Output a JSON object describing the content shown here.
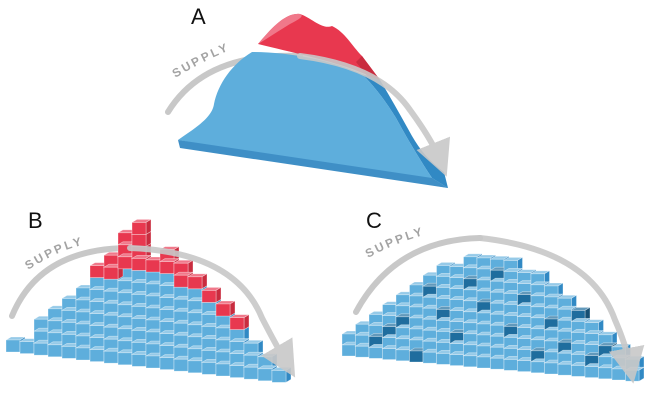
{
  "panels": [
    {
      "id": "a",
      "label": "A",
      "supply": "SUPPLY"
    },
    {
      "id": "b",
      "label": "B",
      "supply": "SUPPLY"
    },
    {
      "id": "c",
      "label": "C",
      "supply": "SUPPLY"
    }
  ],
  "colors": {
    "blue_face": "#5eaedc",
    "blue_dark": "#3189c4",
    "blue_edge": "#2a6fa3",
    "red_face": "#e8384f",
    "red_dark": "#c92c3f",
    "red_light": "#f0788a",
    "arrow": "#c8c8c8",
    "deep_cube": "#1f6d9e"
  }
}
